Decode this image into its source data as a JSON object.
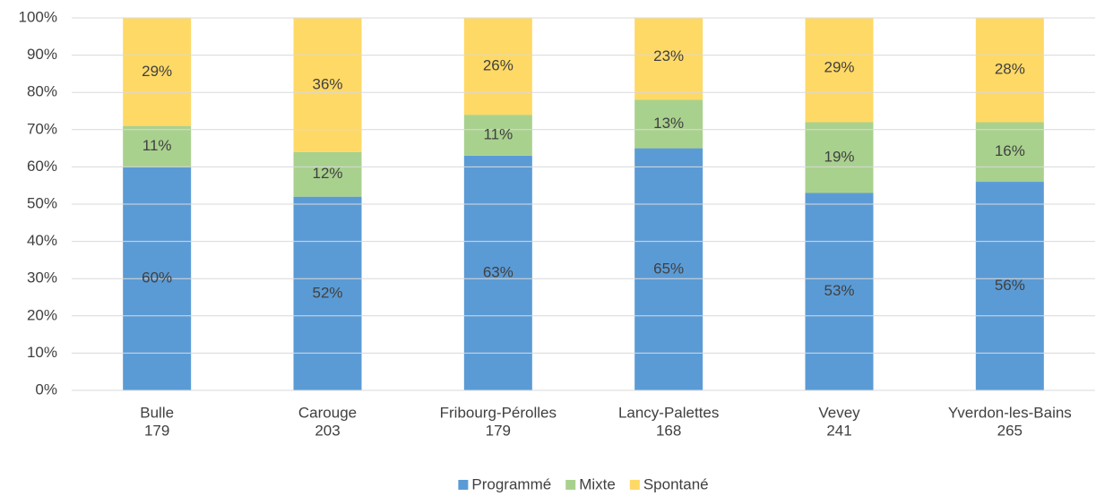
{
  "chart_data": {
    "type": "bar",
    "stacked": true,
    "categories": [
      "Bulle",
      "Carouge",
      "Fribourg-Pérolles",
      "Lancy-Palettes",
      "Vevey",
      "Yverdon-les-Bains"
    ],
    "category_sublabels": [
      "179",
      "203",
      "179",
      "168",
      "241",
      "265"
    ],
    "series": [
      {
        "name": "Programmé",
        "color": "#5b9bd5",
        "values": [
          60,
          52,
          63,
          65,
          53,
          56
        ],
        "value_labels": [
          "60%",
          "52%",
          "63%",
          "65%",
          "53%",
          "56%"
        ]
      },
      {
        "name": "Mixte",
        "color": "#a9d18e",
        "values": [
          11,
          12,
          11,
          13,
          19,
          16
        ],
        "value_labels": [
          "11%",
          "12%",
          "11%",
          "13%",
          "19%",
          "16%"
        ]
      },
      {
        "name": "Spontané",
        "color": "#ffd966",
        "values": [
          29,
          36,
          26,
          23,
          29,
          28
        ],
        "value_labels": [
          "29%",
          "36%",
          "26%",
          "23%",
          "29%",
          "28%"
        ]
      }
    ],
    "ylim": [
      0,
      100
    ],
    "yticks": [
      {
        "value": 0,
        "label": "0%"
      },
      {
        "value": 10,
        "label": "10%"
      },
      {
        "value": 20,
        "label": "20%"
      },
      {
        "value": 30,
        "label": "30%"
      },
      {
        "value": 40,
        "label": "40%"
      },
      {
        "value": 50,
        "label": "50%"
      },
      {
        "value": 60,
        "label": "60%"
      },
      {
        "value": 70,
        "label": "70%"
      },
      {
        "value": 80,
        "label": "80%"
      },
      {
        "value": 90,
        "label": "90%"
      },
      {
        "value": 100,
        "label": "100%"
      }
    ],
    "grid": true,
    "legend": "bottom"
  }
}
